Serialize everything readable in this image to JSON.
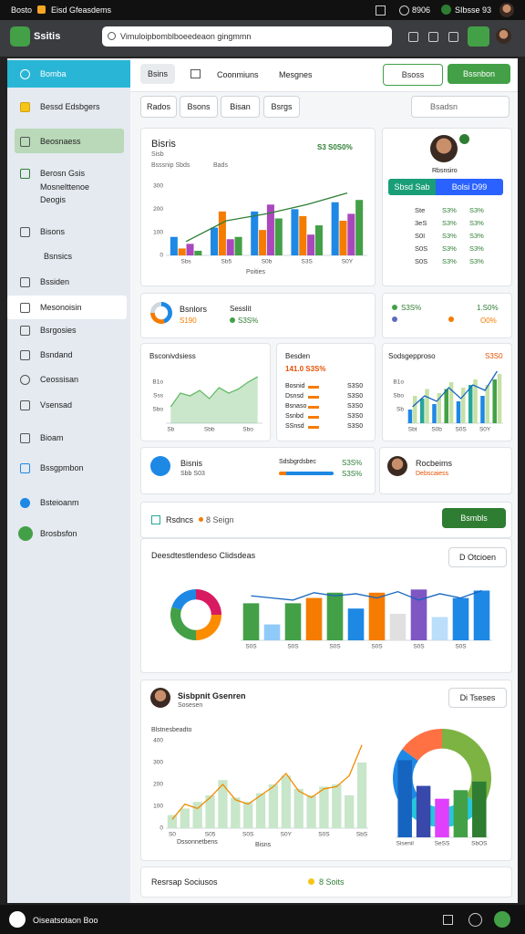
{
  "status_bar": {
    "left": [
      "Bosto",
      "Eisd Gfeasdems"
    ],
    "right": [
      "8906",
      "SIbsse 93"
    ]
  },
  "browser": {
    "app_name": "Ssitis",
    "address": "Vimuloipbomblboeedeaon gingmmn"
  },
  "sidebar": {
    "items": [
      "Bomba",
      "Bessd Edsbgers",
      "Beosnaess",
      "Berosn Gsis",
      "Mosnelttenoe",
      "Deogis",
      "Bisons",
      "Bsnsics",
      "Bssiden",
      "Mesonoisin",
      "Bsrgosies",
      "Bsndand",
      "Ceossisan",
      "Vsensad",
      "Bioam",
      "Bssgpmbon",
      "Bsteioanm",
      "Brosbsfon"
    ]
  },
  "tabs": [
    "Bsins",
    "Coonmiuns",
    "Mesgnes"
  ],
  "header_buttons": [
    "Bsoss",
    "Bssnbon"
  ],
  "filters": [
    "Rados",
    "Bsons",
    "Bisan",
    "Bsrgs"
  ],
  "search": "Bsadsn",
  "main_card": {
    "title": "Bisris",
    "subtitle": "Sisb",
    "legend": [
      "Bsssnip Sbds",
      "Bads"
    ],
    "kpi": "S3 S0S0%",
    "axis_label": "Poities"
  },
  "profile": {
    "name": "Rbsnsiro",
    "tags": [
      "Sbsd Sab",
      "Bolsi D99"
    ],
    "rows": [
      [
        "Ste",
        "S3%",
        "S3%"
      ],
      [
        "3eS",
        "S3%",
        "S3%"
      ],
      [
        "S0I",
        "S3%",
        "S3%"
      ],
      [
        "S0S",
        "S3%",
        "S3%"
      ],
      [
        "S0S",
        "S3%",
        "S3%"
      ]
    ]
  },
  "stats": {
    "title": "Bsnlors",
    "value": "S190",
    "label": "Sesslit",
    "change": "S3S%",
    "right": [
      "S3S%",
      "1.S0%",
      "O0%"
    ]
  },
  "area_card": {
    "title": "Bsconivdsiess"
  },
  "list_card": {
    "title": "Besden",
    "value": "141.0 S3S%",
    "items": [
      [
        "Bosnid",
        "S3S0"
      ],
      [
        "Dsnsd",
        "S3S0"
      ],
      [
        "Bsnaso",
        "S3S0"
      ],
      [
        "Ssnbd",
        "S3S0"
      ],
      [
        "SSnsd",
        "S3S0"
      ]
    ]
  },
  "bars_card": {
    "title": "Sodsgepproso",
    "value": "S3S0"
  },
  "progress_card": {
    "title": "Bisnis",
    "subtitle": "Sbb S03",
    "bar_label": "Sdsbgrdsbec",
    "values": [
      "S3S%",
      "S3S%"
    ]
  },
  "person_card": {
    "name": "Rocbeims",
    "role": "Debscaiess"
  },
  "toolbar": {
    "label": "Rsdncs",
    "count": "8 Seign",
    "button": "Bsmbls"
  },
  "distribution_card": {
    "title": "Deesdtestlendeso Clidsdeas",
    "dropdown": "D Otcioen"
  },
  "trend_card": {
    "title": "Sisbpnit Gsenren",
    "subtitle": "Sosesen",
    "dropdown": "Di Tseses",
    "chart_title": "Blstnesbeadto",
    "axis_label": "Bisns",
    "x_label": "Dssonnetbens"
  },
  "footer_card": {
    "label": "Resrsap Sociusos",
    "status": "8 Soits"
  },
  "bottom_bar": {
    "label": "Oiseatsotaon Boo"
  },
  "charts": {
    "main": {
      "type": "bar",
      "categories": [
        "Sbs",
        "Sb5",
        "S0b",
        "S3S",
        "S0Y"
      ],
      "series": [
        {
          "color": "#1e88e5",
          "values": [
            80,
            120,
            190,
            200,
            230
          ]
        },
        {
          "color": "#f57c00",
          "values": [
            30,
            190,
            110,
            170,
            150
          ]
        },
        {
          "color": "#ab47bc",
          "values": [
            50,
            70,
            220,
            90,
            180
          ]
        },
        {
          "color": "#43a047",
          "values": [
            20,
            80,
            160,
            130,
            240
          ]
        },
        {
          "type": "line",
          "color": "#2e7d32",
          "values": [
            60,
            150,
            180,
            220,
            270
          ]
        }
      ],
      "ylim": [
        0,
        300
      ],
      "yticks": [
        0,
        100,
        200,
        300
      ],
      "grid": true
    },
    "donut_small": {
      "type": "pie",
      "donut": true,
      "values": [
        45,
        30,
        25
      ],
      "colors": [
        "#1e88e5",
        "#f57c00",
        "#cfd8dc"
      ]
    },
    "area": {
      "type": "area",
      "categories": [
        "Sb",
        null,
        null,
        null,
        "Sbb",
        null,
        null,
        null,
        "Sbo",
        null
      ],
      "series": [
        {
          "type": "area",
          "color": "#66bb6a",
          "values": [
            12,
            22,
            20,
            24,
            18,
            26,
            22,
            25,
            30,
            34
          ]
        }
      ],
      "ylim": [
        0,
        40
      ],
      "yticks": [
        {
          "value": 10,
          "label": "Sbo"
        },
        {
          "value": 20,
          "label": "Sss"
        },
        {
          "value": 30,
          "label": "B1o"
        }
      ],
      "grid": true
    },
    "bars_right": {
      "type": "bar",
      "categories": [
        "Sbt",
        null,
        "S0b",
        null,
        "S0S",
        null,
        "S0Y",
        null
      ],
      "series": [
        {
          "colors": [
            "#1e88e5",
            "#26a69a",
            "#1e88e5",
            "#43a047",
            "#1e88e5",
            "#26a69a",
            "#1e88e5",
            "#43a047"
          ],
          "values": [
            10,
            18,
            14,
            25,
            16,
            28,
            20,
            32
          ]
        },
        {
          "color": "#c5e1a5",
          "values": [
            20,
            25,
            22,
            30,
            26,
            32,
            28,
            36
          ]
        },
        {
          "type": "line",
          "color": "#1565c0",
          "values": [
            12,
            20,
            16,
            26,
            18,
            28,
            24,
            38
          ]
        }
      ],
      "ylim": [
        0,
        40
      ],
      "yticks": [
        {
          "value": 10,
          "label": "Sb"
        },
        {
          "value": 20,
          "label": "Sbo"
        },
        {
          "value": 30,
          "label": "B1o"
        }
      ],
      "grid": true
    },
    "donut_big": {
      "type": "pie",
      "donut": true,
      "values": [
        25,
        25,
        30,
        20
      ],
      "colors": [
        "#d81b60",
        "#fb8c00",
        "#43a047",
        "#1e88e5"
      ]
    },
    "bars_wide": {
      "type": "bar",
      "categories": [
        "S0S",
        null,
        "S0S",
        null,
        "S0S",
        null,
        "S0S",
        null,
        "S0S",
        null,
        "S0S",
        null
      ],
      "series": [
        {
          "colors": [
            "#43a047",
            "#90caf9",
            "#43a047",
            "#f57c00",
            "#43a047",
            "#1e88e5",
            "#f57c00",
            "#e0e0e0",
            "#7e57c2",
            "#bbdefb",
            "#1e88e5",
            "#1e88e5"
          ],
          "values": [
            35,
            15,
            35,
            40,
            45,
            30,
            45,
            25,
            48,
            22,
            40,
            47
          ]
        },
        {
          "type": "line",
          "color": "#1565c0",
          "values": [
            42,
            40,
            38,
            45,
            42,
            44,
            40,
            46,
            38,
            44,
            40,
            47
          ]
        }
      ],
      "ylim": [
        0,
        50
      ]
    },
    "bars_trend": {
      "type": "bar",
      "categories": [
        "S0",
        null,
        null,
        "S05",
        null,
        null,
        "S0S",
        null,
        null,
        "S0Y",
        null,
        null,
        "S0S",
        null,
        null,
        "SbS"
      ],
      "series": [
        {
          "color": "#c8e6c9",
          "values": [
            60,
            90,
            120,
            150,
            220,
            140,
            120,
            160,
            200,
            240,
            180,
            150,
            190,
            200,
            150,
            300
          ]
        },
        {
          "type": "line",
          "color": "#ef8c00",
          "values": [
            40,
            110,
            90,
            140,
            200,
            130,
            110,
            150,
            190,
            250,
            170,
            140,
            180,
            190,
            240,
            380
          ]
        }
      ],
      "ylim": [
        0,
        400
      ],
      "yticks": [
        0,
        100,
        200,
        300,
        400
      ],
      "grid": true
    },
    "ring": {
      "type": "pie",
      "donut": true,
      "values": [
        35,
        30,
        20,
        15
      ],
      "colors": [
        "#7cb342",
        "#26c6da",
        "#1e88e5",
        "#ff7043"
      ]
    },
    "ring_bars": {
      "type": "bar",
      "categories": [
        "Sisenil",
        null,
        "SeSS",
        null,
        "SbOS"
      ],
      "series": [
        {
          "colors": [
            "#1565c0",
            "#3949ab",
            "#e040fb",
            "#43a047",
            "#2e7d32"
          ],
          "values": [
            90,
            60,
            45,
            55,
            65
          ]
        }
      ],
      "ylim": [
        0,
        100
      ]
    }
  }
}
